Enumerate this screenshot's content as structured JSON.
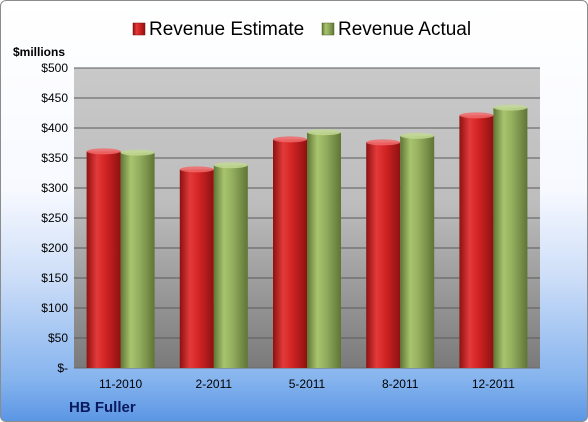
{
  "chart_data": {
    "type": "bar",
    "categories": [
      "11-2010",
      "2-2011",
      "5-2011",
      "8-2011",
      "12-2011"
    ],
    "series": [
      {
        "name": "Revenue Estimate",
        "values": [
          361,
          331,
          381,
          376,
          421
        ],
        "color": "#cc1f1f"
      },
      {
        "name": "Revenue Actual",
        "values": [
          359,
          338,
          393,
          387,
          434
        ],
        "color": "#8fa95a"
      }
    ],
    "y_ticks": [
      "$-",
      "$50",
      "$100",
      "$150",
      "$200",
      "$250",
      "$300",
      "$350",
      "$400",
      "$450",
      "$500"
    ],
    "ylim": [
      0,
      500
    ],
    "y_unit_label": "$millions",
    "company_label": "HB Fuller",
    "legend_position": "top",
    "grid": true
  }
}
